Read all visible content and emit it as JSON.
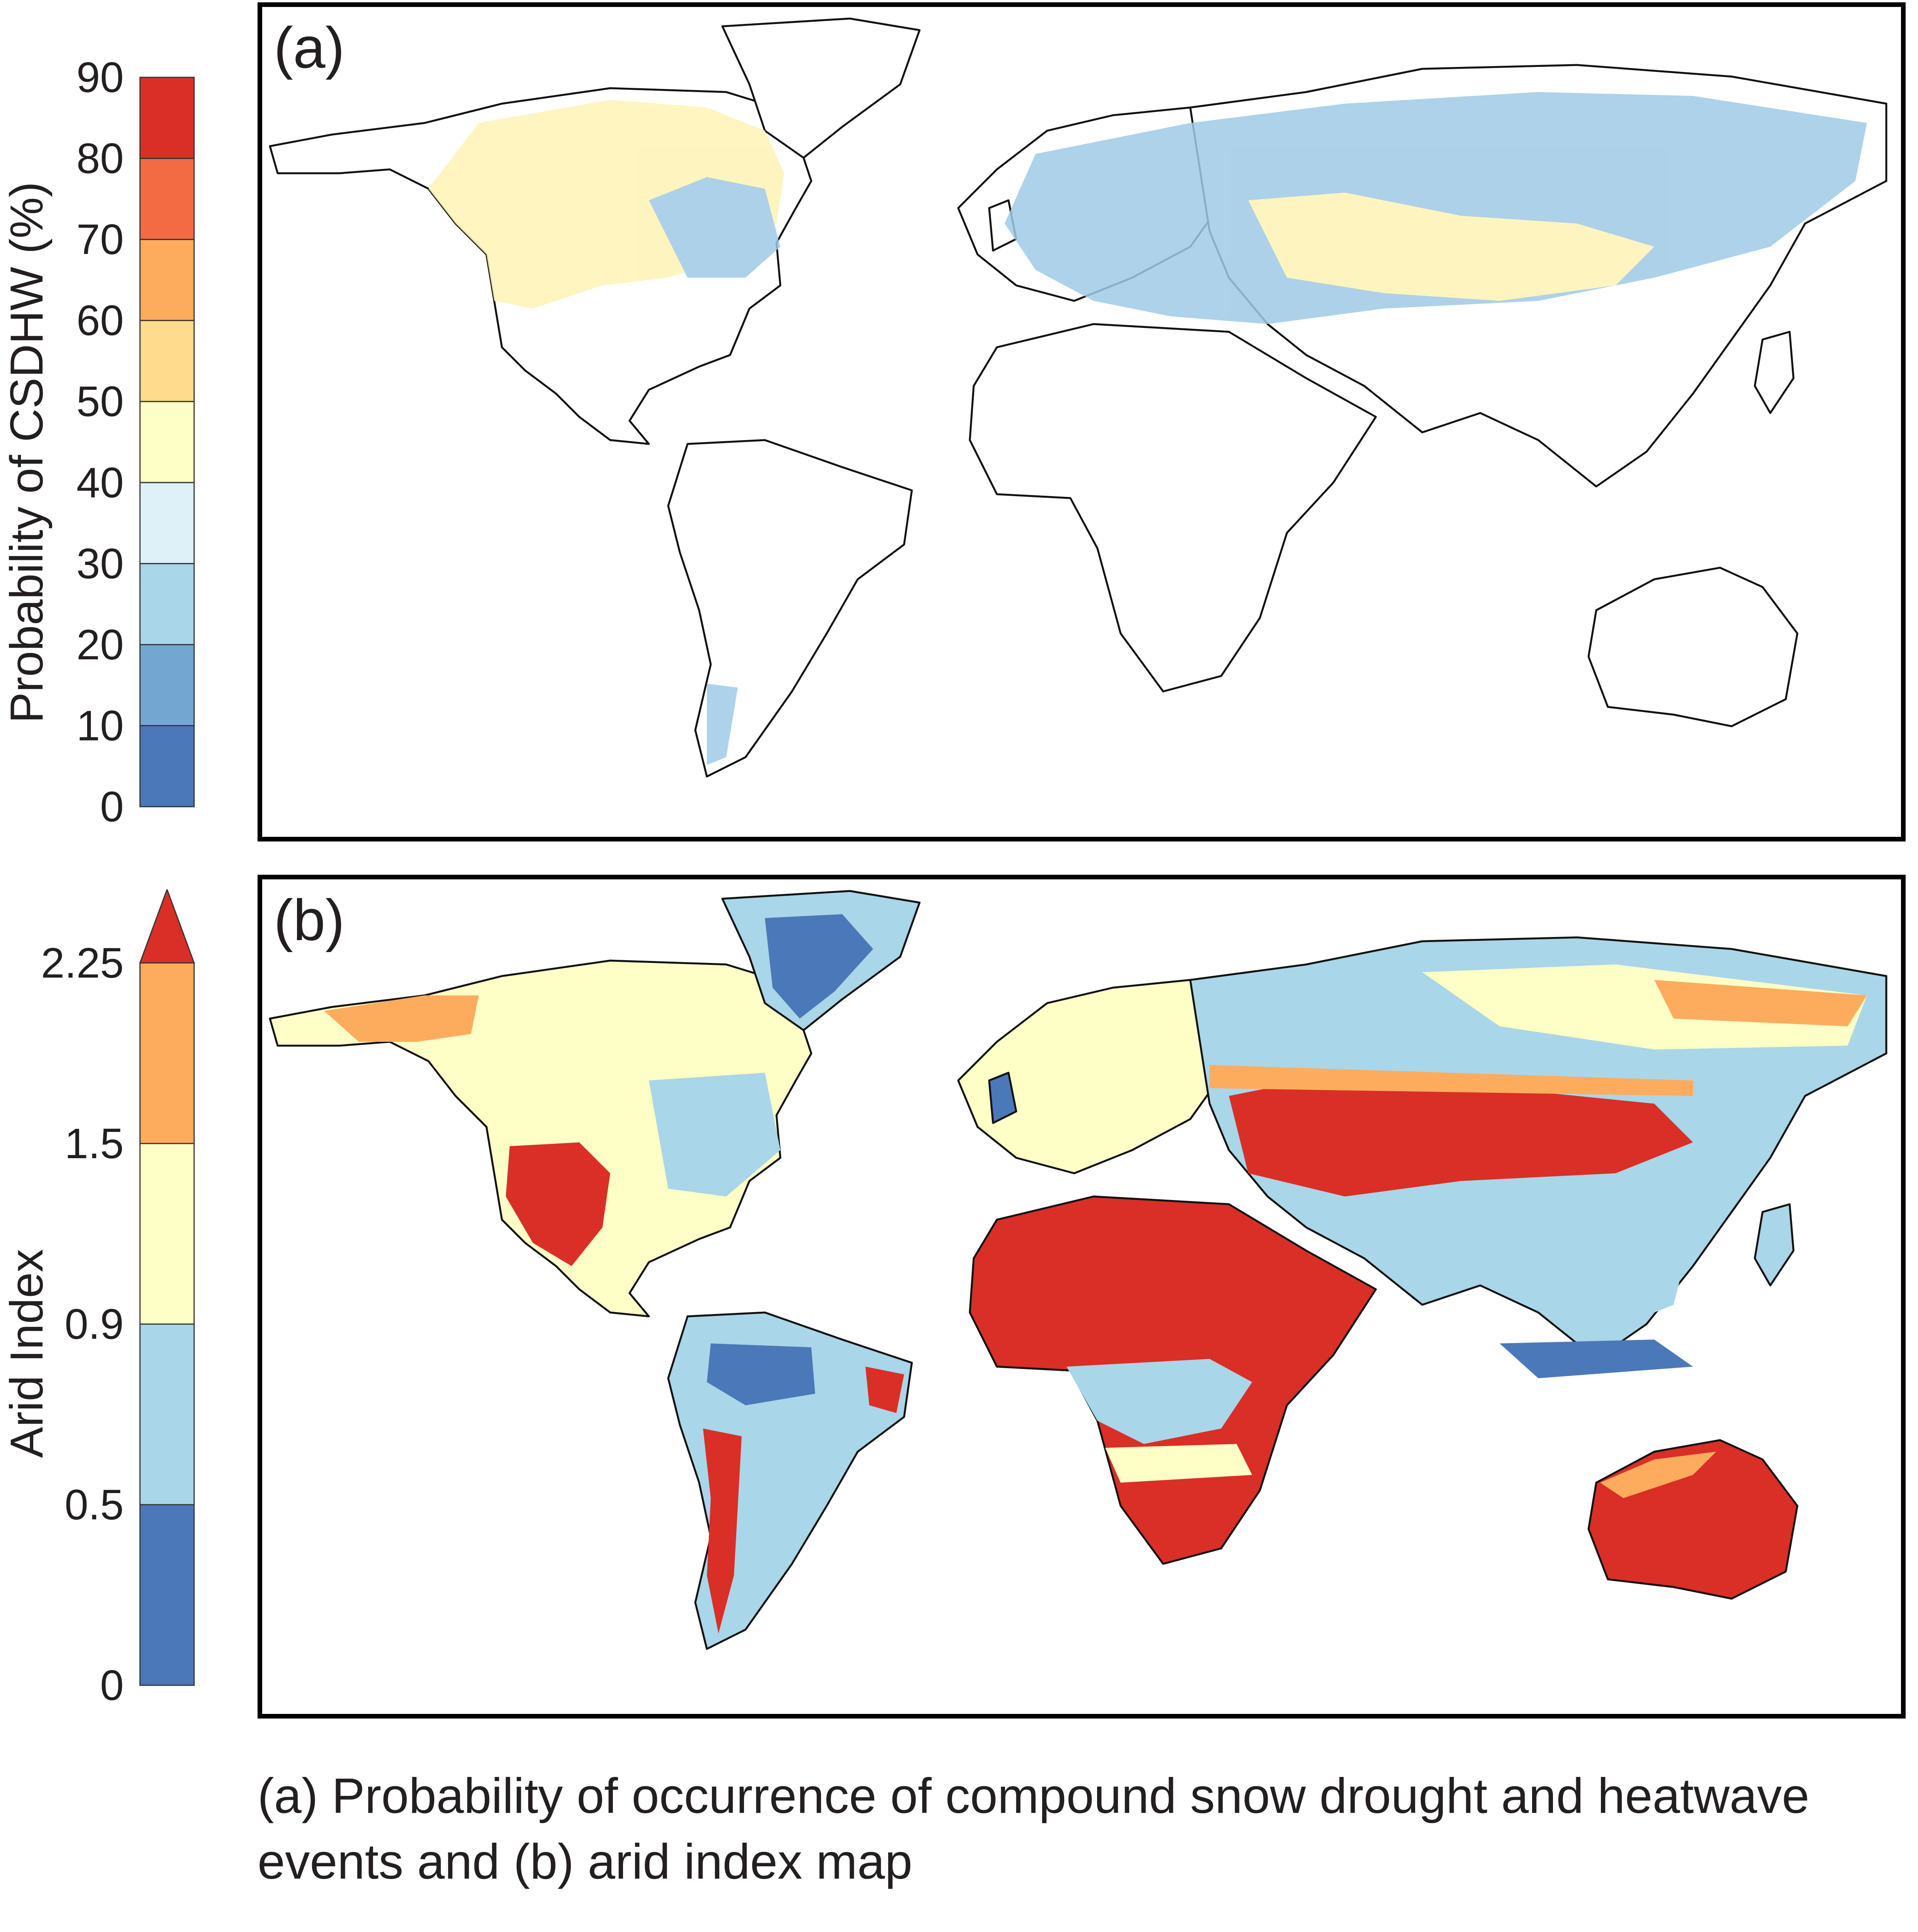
{
  "panels": {
    "a": {
      "label": "(a)",
      "colorbar": {
        "title": "Probability of CSDHW (%)",
        "ticks": [
          "0",
          "10",
          "20",
          "30",
          "40",
          "50",
          "60",
          "70",
          "80",
          "90"
        ],
        "colors": [
          "#4b78b8",
          "#73a7d1",
          "#a9d6e8",
          "#def1f8",
          "#feffc6",
          "#fedb8d",
          "#fdac5e",
          "#f26b43",
          "#d92f27"
        ]
      },
      "colors": {
        "low": "#9fcae5",
        "mid": "#fef3b5",
        "high": "#fdb975",
        "hot": "#3a2a22"
      }
    },
    "b": {
      "label": "(b)",
      "colorbar": {
        "title": "Arid Index",
        "ticks": [
          "0",
          "0.5",
          "0.9",
          "1.5",
          "2.25"
        ],
        "colors": [
          "#4b78b8",
          "#a9d6e8",
          "#feffc6",
          "#fdac5e"
        ],
        "extend_color": "#d92f27"
      },
      "colors": {
        "very_arid": "#d92f27",
        "arid": "#fdac5e",
        "semi": "#feffc6",
        "humid": "#a9d6e8",
        "very_humid": "#4b78b8"
      }
    }
  },
  "caption": "(a) Probability of occurrence of compound snow drought and heatwave events and (b) arid index map"
}
